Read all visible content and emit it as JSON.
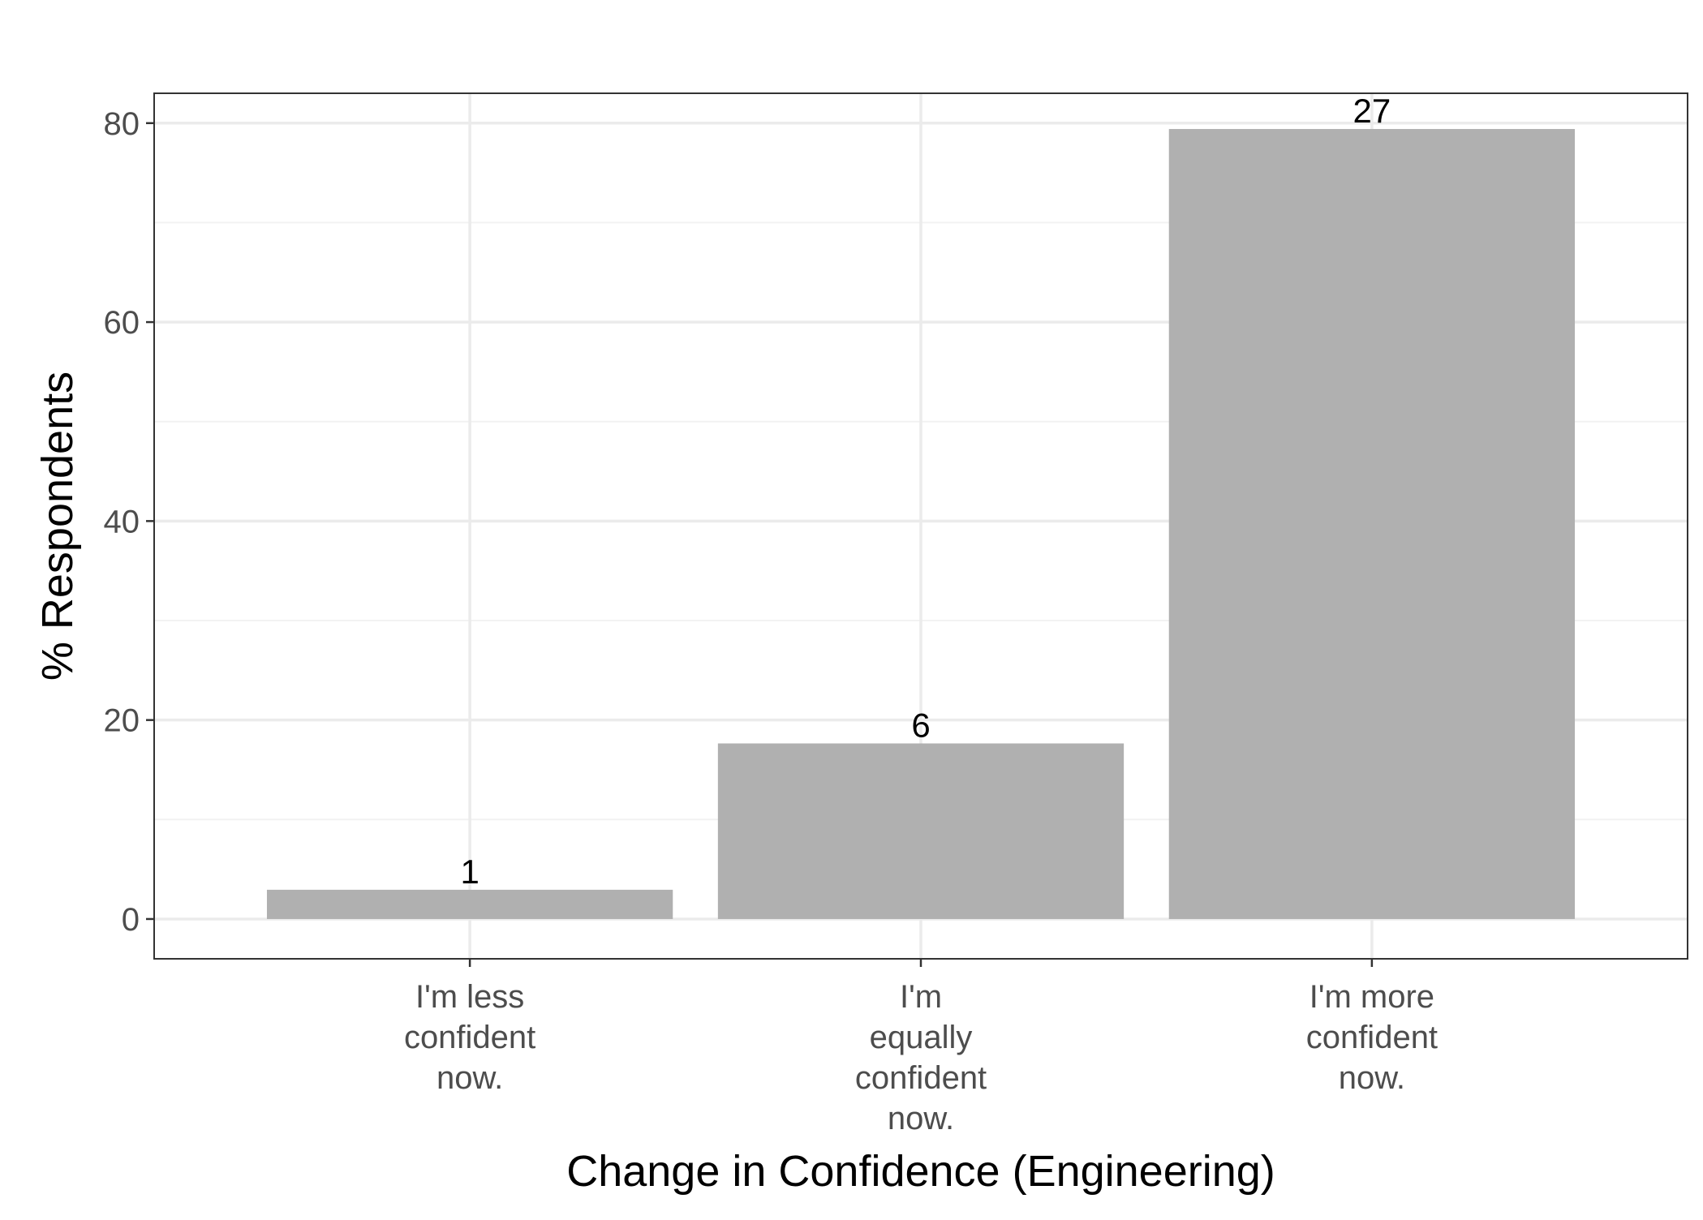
{
  "chart_data": {
    "type": "bar",
    "title": "",
    "xlabel": "Change in Confidence (Engineering)",
    "ylabel": "% Respondents",
    "categories": [
      [
        "I'm less",
        "confident",
        "now."
      ],
      [
        "I'm",
        "equally",
        "confident",
        "now."
      ],
      [
        "I'm more",
        "confident",
        "now."
      ]
    ],
    "values": [
      2.94,
      17.65,
      79.41
    ],
    "data_labels": [
      "1",
      "6",
      "27"
    ],
    "ylim": [
      -4,
      83
    ],
    "yticks": [
      0,
      20,
      40,
      60,
      80
    ],
    "yticks_minor": [
      10,
      30,
      50,
      70
    ],
    "grid": true,
    "legend": "none",
    "colors": {
      "bar": "#b0b0b0",
      "grid_major": "#ebebeb",
      "grid_minor": "#f2f2f2",
      "panel_border": "#333333",
      "tick_text": "#4d4d4d",
      "axis_title": "#000000"
    }
  }
}
